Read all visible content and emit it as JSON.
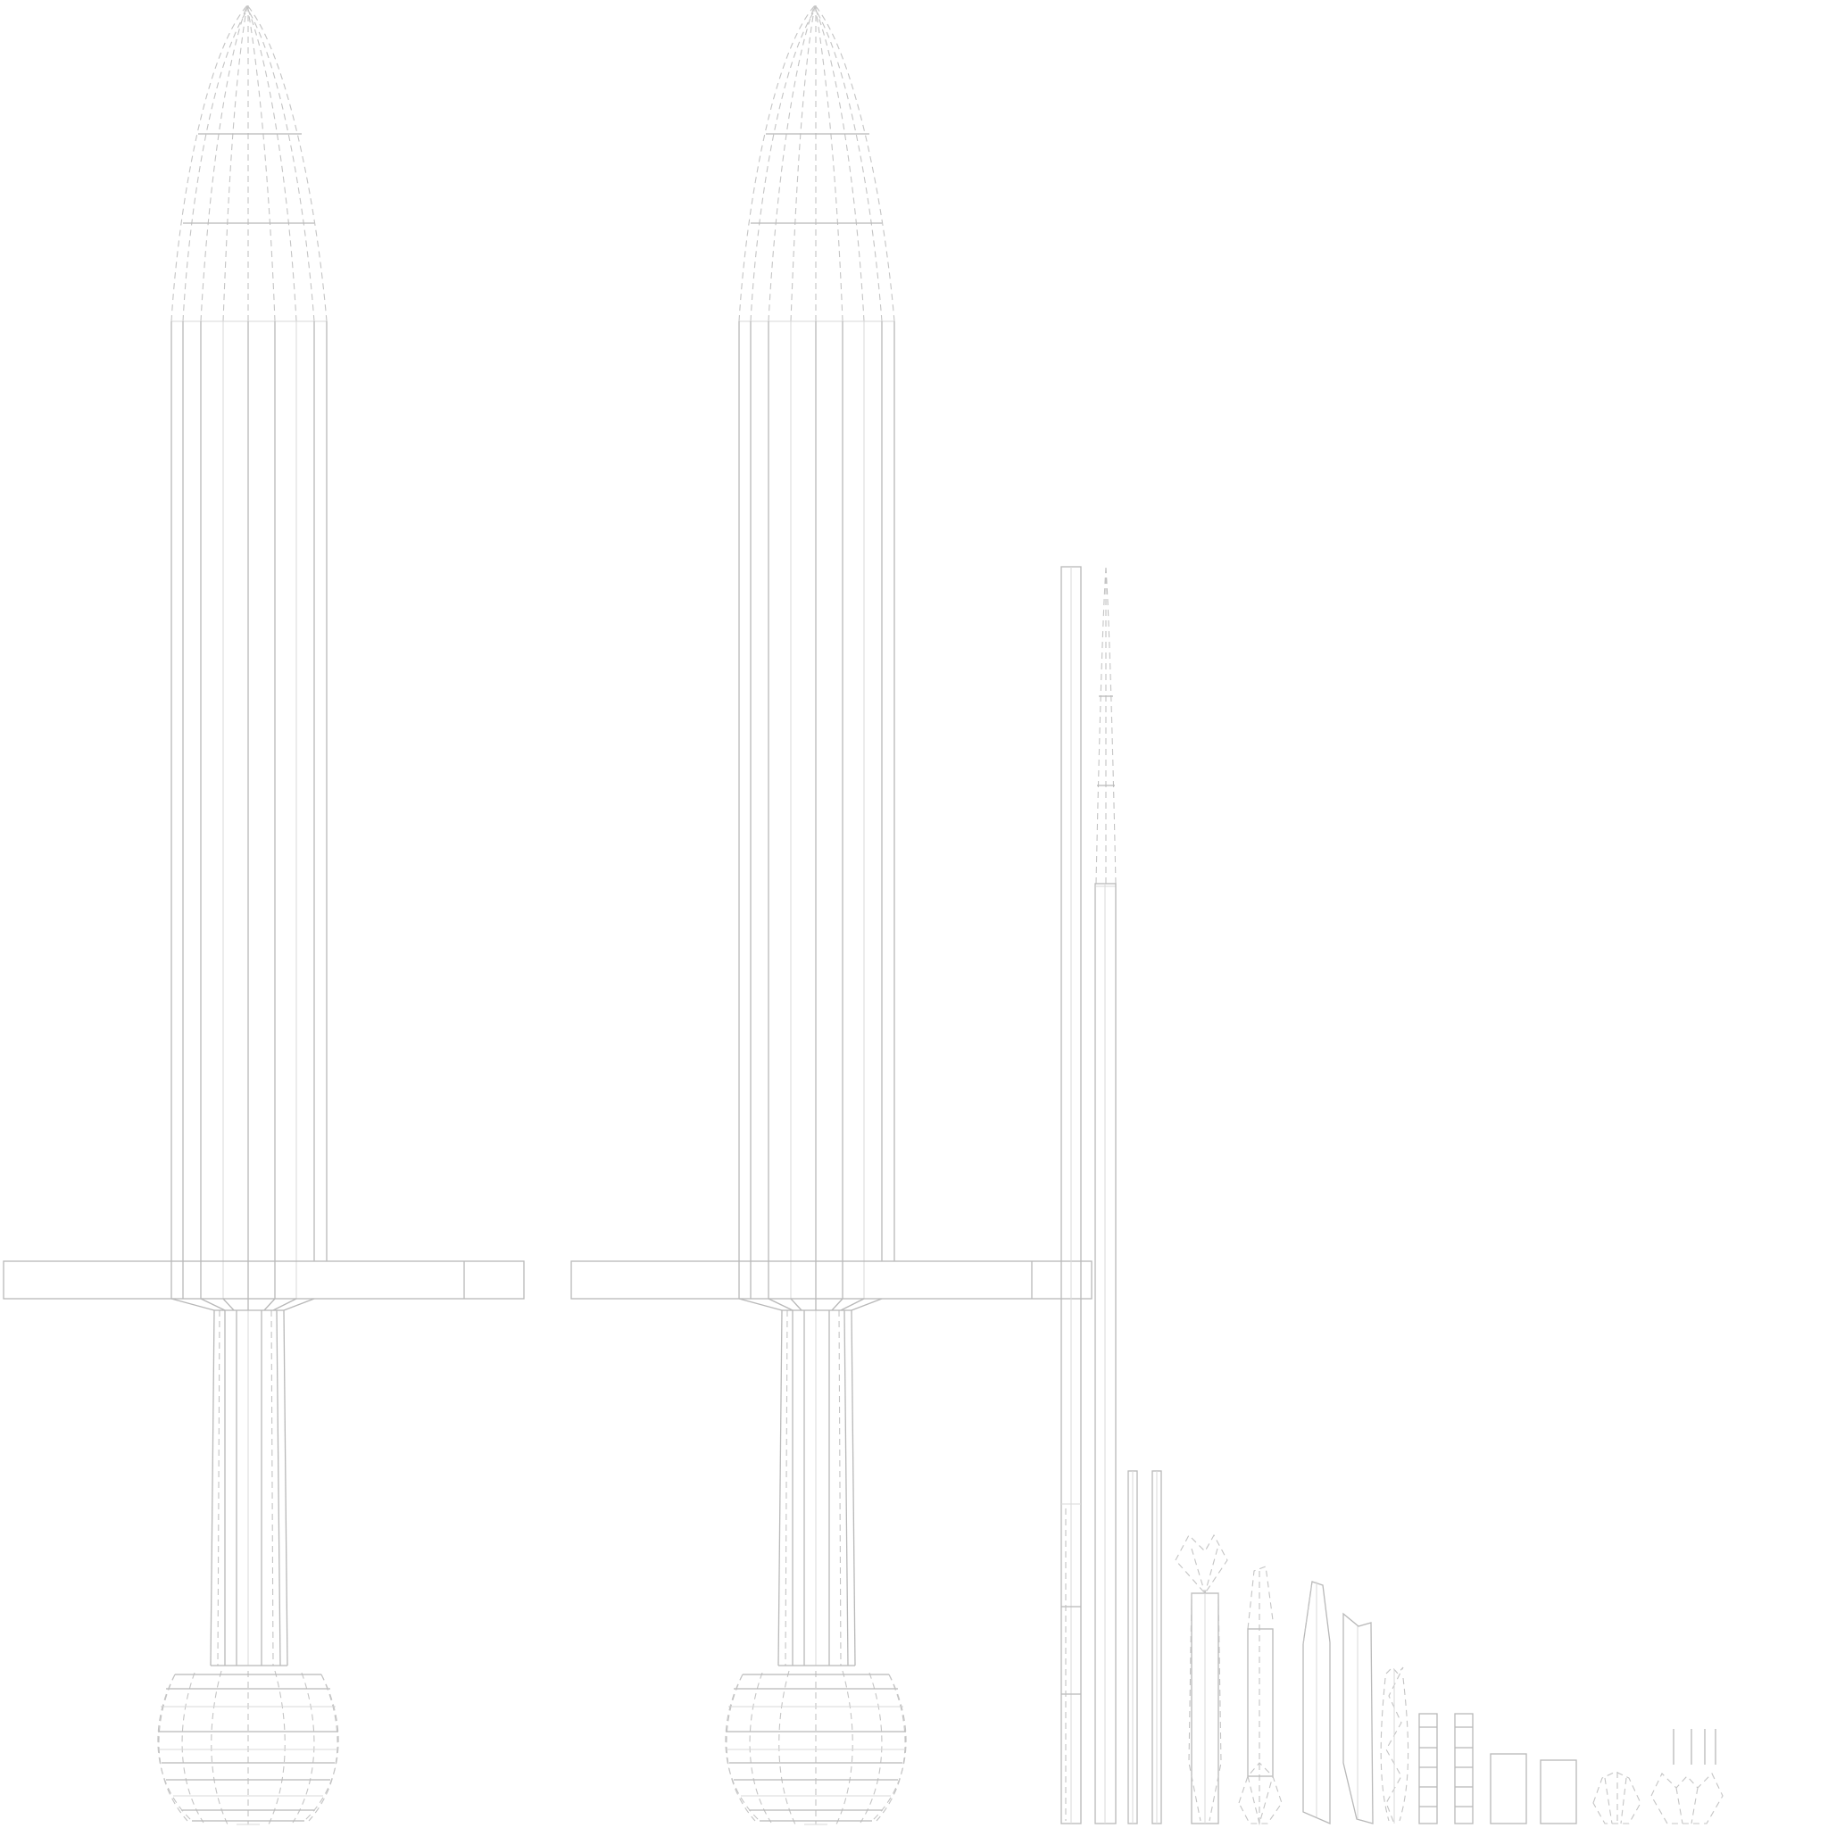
{
  "canvas": {
    "background": "#ffffff"
  },
  "palette": {
    "wire": "#b8b8b8",
    "wire_dashed": "#c4c4c4",
    "wire_light": "#dadada"
  },
  "islands": [
    "sword-front-island",
    "sword-back-island",
    "blade-edge-strip-island",
    "blade-tip-strip-island",
    "small-piece-islands"
  ]
}
